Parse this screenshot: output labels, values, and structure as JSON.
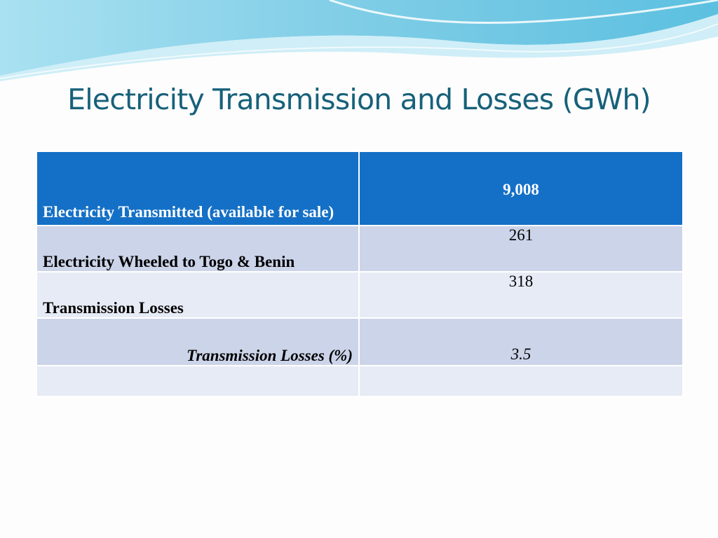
{
  "slide": {
    "title": "Electricity Transmission and Losses (GWh)",
    "colors": {
      "title": "#17617a",
      "header_fill": "#1470c6",
      "row_dark": "#ccd4e9",
      "row_light": "#e7ebf5",
      "wave_primary": "#7fcde6",
      "wave_light": "#cfeef7"
    }
  },
  "table": {
    "header": {
      "label": "Electricity Transmitted (available for sale)",
      "value": "9,008"
    },
    "rows": [
      {
        "label": "Electricity Wheeled to Togo & Benin",
        "value": "261"
      },
      {
        "label": "Transmission Losses",
        "value": "318"
      },
      {
        "label": "Transmission Losses (%)",
        "value": "3.5"
      },
      {
        "label": "",
        "value": ""
      }
    ]
  }
}
